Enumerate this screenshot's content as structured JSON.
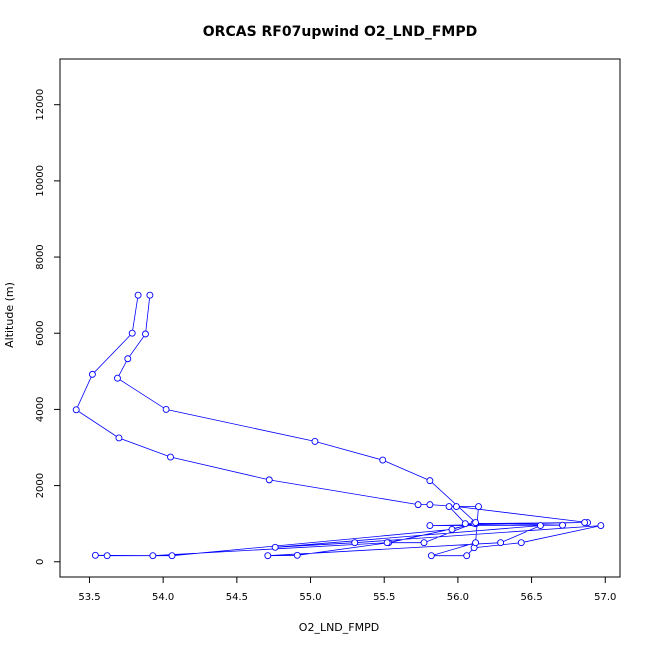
{
  "chart_data": {
    "type": "line",
    "title": "ORCAS RF07upwind O2_LND_FMPD",
    "xlabel": "O2_LND_FMPD",
    "ylabel": "Altitude (m)",
    "xlim": [
      53.3,
      57.1
    ],
    "ylim": [
      -400,
      13200
    ],
    "x_ticks": [
      53.5,
      54.0,
      54.5,
      55.0,
      55.5,
      56.0,
      56.5,
      57.0
    ],
    "x_tick_labels": [
      "53.5",
      "54.0",
      "54.5",
      "55.0",
      "55.5",
      "56.0",
      "56.5",
      "57.0"
    ],
    "y_ticks": [
      0,
      2000,
      4000,
      6000,
      8000,
      10000,
      12000
    ],
    "y_tick_labels": [
      "0",
      "2000",
      "4000",
      "6000",
      "8000",
      "10000",
      "12000"
    ],
    "grid": false,
    "color": "#0000ff",
    "series": [
      {
        "x": [
          53.83,
          53.79,
          53.52,
          53.41,
          53.7,
          54.05,
          54.72,
          55.73,
          55.81,
          55.99,
          56.88,
          56.12,
          55.53,
          54.91,
          54.71,
          56.29,
          56.56,
          54.76,
          55.3,
          56.97,
          56.43,
          56.11,
          56.06,
          55.82,
          56.12,
          56.14,
          55.94,
          56.05,
          56.86,
          55.81,
          56.71,
          56.11,
          55.96,
          54.06,
          53.62,
          53.54,
          53.93,
          55.52,
          55.77,
          56.12,
          55.81,
          55.49,
          55.03,
          54.02,
          53.69,
          53.76,
          53.88,
          53.91
        ],
        "y": [
          7000,
          6000,
          4920,
          3990,
          3250,
          2750,
          2150,
          1500,
          1500,
          1450,
          1030,
          1000,
          500,
          170,
          160,
          500,
          950,
          380,
          500,
          950,
          500,
          370,
          160,
          160,
          500,
          1450,
          1450,
          1000,
          1030,
          950,
          960,
          1010,
          850,
          160,
          160,
          170,
          160,
          500,
          500,
          1030,
          2130,
          2670,
          3160,
          4000,
          4820,
          5330,
          5980,
          7000
        ]
      }
    ]
  }
}
